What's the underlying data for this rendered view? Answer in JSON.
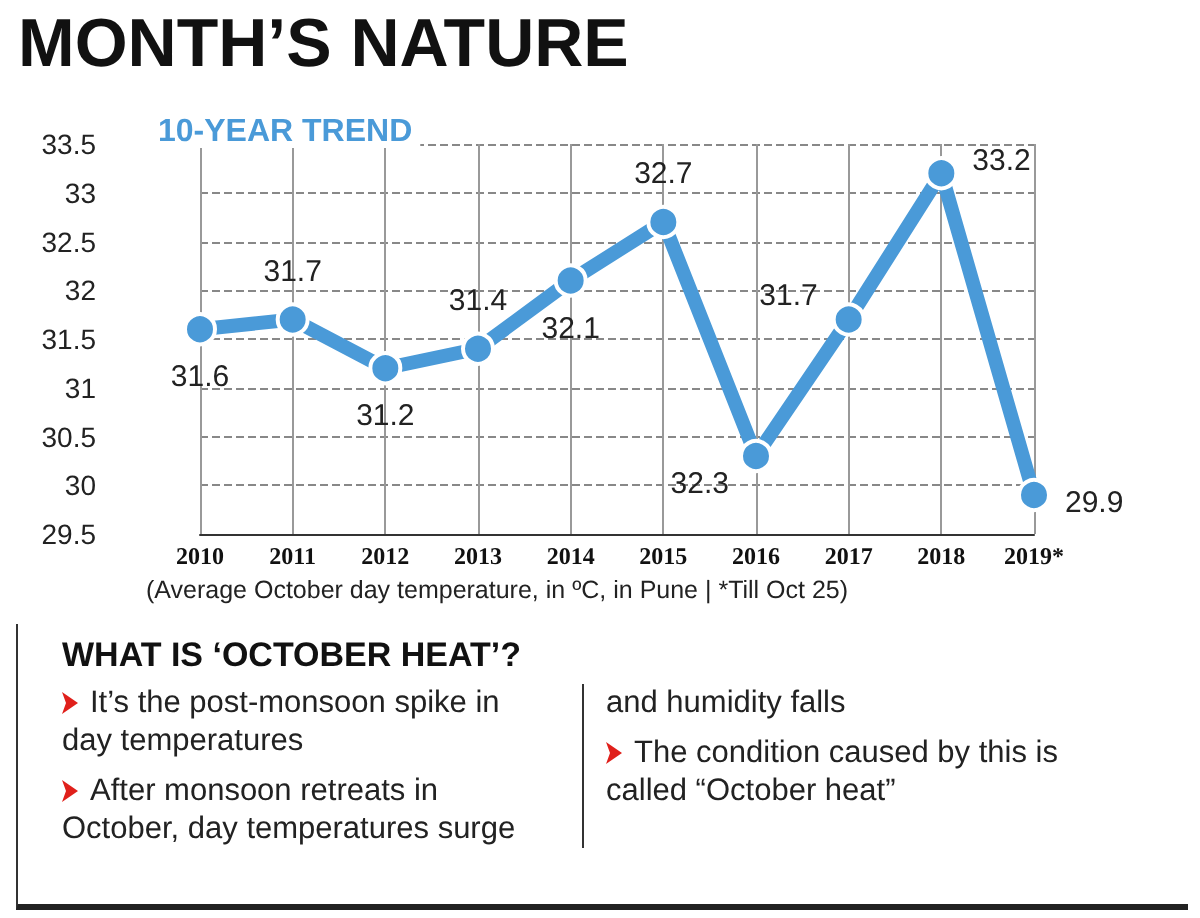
{
  "chart_data": {
    "type": "line",
    "title": "MONTH’S NATURE",
    "subtitle": "10-YEAR TREND",
    "categories": [
      "2010",
      "2011",
      "2012",
      "2013",
      "2014",
      "2015",
      "2016",
      "2017",
      "2018",
      "2019*"
    ],
    "values": [
      31.6,
      31.7,
      31.2,
      31.4,
      32.1,
      32.7,
      30.3,
      31.7,
      33.2,
      29.9
    ],
    "value_labels": [
      "31.6",
      "31.7",
      "31.2",
      "31.4",
      "32.1",
      "32.7",
      null,
      "31.7",
      "33.2",
      "29.9"
    ],
    "color": "#4a9ad8",
    "marker": "circle",
    "line_style": "solid",
    "grid": true,
    "ylim": [
      29.5,
      33.5
    ],
    "yticks": [
      29.5,
      30,
      30.5,
      31,
      31.5,
      32,
      32.5,
      33,
      33.5
    ],
    "annotations": [
      {
        "text": "32.3",
        "x": "2016",
        "y": 30.3
      },
      "(Average October day temperature, in ºC, in Pune | *Till Oct 25)",
      "WHAT IS ‘OCTOBER HEAT’?",
      "It’s the post-monsoon spike in day temperatures",
      "After monsoon retreats in October, day temperatures surge and humidity falls",
      "The condition caused by this is called “October heat”"
    ]
  }
}
